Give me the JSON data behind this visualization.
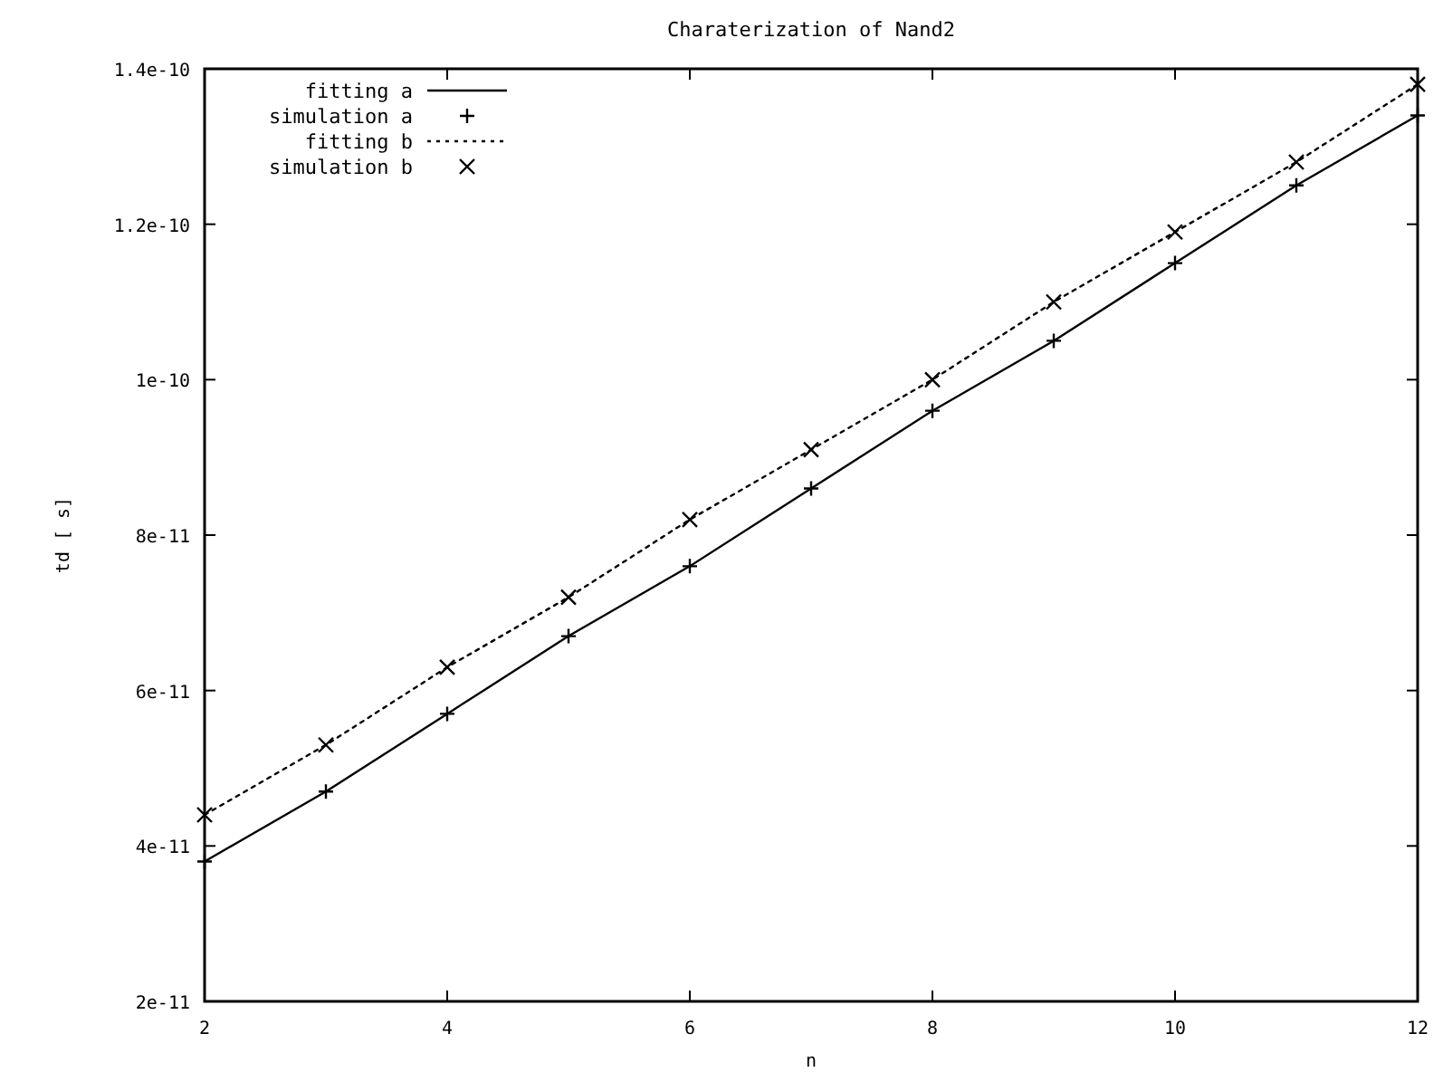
{
  "chart_data": {
    "type": "line",
    "title": "Charaterization of Nand2",
    "xlabel": "n",
    "ylabel": "td [ s]",
    "x": [
      2,
      3,
      4,
      5,
      6,
      7,
      8,
      9,
      10,
      11,
      12
    ],
    "xlim": [
      2,
      12
    ],
    "xticks": [
      2,
      4,
      6,
      8,
      10,
      12
    ],
    "ylim": [
      2e-11,
      1.4e-10
    ],
    "yticks": [
      {
        "value": 2e-11,
        "label": "2e-11"
      },
      {
        "value": 4e-11,
        "label": "4e-11"
      },
      {
        "value": 6e-11,
        "label": "6e-11"
      },
      {
        "value": 8e-11,
        "label": "8e-11"
      },
      {
        "value": 1e-10,
        "label": "1e-10"
      },
      {
        "value": 1.2e-10,
        "label": "1.2e-10"
      },
      {
        "value": 1.4e-10,
        "label": "1.4e-10"
      }
    ],
    "grid": false,
    "legend": "top left",
    "series": [
      {
        "name": "fitting a",
        "color": "#000000",
        "line_style": "solid",
        "marker": "none",
        "values": [
          3.8e-11,
          4.7e-11,
          5.7e-11,
          6.7e-11,
          7.6e-11,
          8.6e-11,
          9.6e-11,
          1.05e-10,
          1.15e-10,
          1.25e-10,
          1.34e-10
        ]
      },
      {
        "name": "simulation a",
        "type": "scatter",
        "color": "#000000",
        "marker": "plus",
        "values": [
          3.8e-11,
          4.7e-11,
          5.7e-11,
          6.7e-11,
          7.6e-11,
          8.6e-11,
          9.6e-11,
          1.05e-10,
          1.15e-10,
          1.25e-10,
          1.34e-10
        ]
      },
      {
        "name": "fitting b",
        "color": "#000000",
        "line_style": "dotted",
        "marker": "none",
        "values": [
          4.4e-11,
          5.3e-11,
          6.3e-11,
          7.2e-11,
          8.2e-11,
          9.1e-11,
          1e-10,
          1.1e-10,
          1.19e-10,
          1.28e-10,
          1.38e-10
        ]
      },
      {
        "name": "simulation b",
        "type": "scatter",
        "color": "#000000",
        "marker": "cross",
        "values": [
          4.4e-11,
          5.3e-11,
          6.3e-11,
          7.2e-11,
          8.2e-11,
          9.1e-11,
          1e-10,
          1.1e-10,
          1.19e-10,
          1.28e-10,
          1.38e-10
        ]
      }
    ]
  }
}
